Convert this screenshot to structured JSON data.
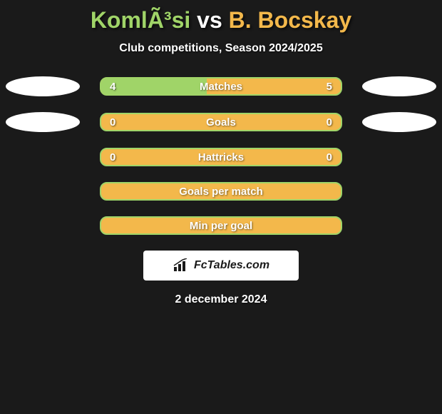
{
  "title": {
    "player1": "KomlÃ³si",
    "vs": "vs",
    "player2": "B. Bocskay"
  },
  "subtitle": "Club competitions, Season 2024/2025",
  "colors": {
    "player1_color": "#a0d468",
    "player2_color": "#f3b84b",
    "background": "#1a1a1a",
    "white": "#ffffff"
  },
  "stats": [
    {
      "label": "Matches",
      "left_value": "4",
      "right_value": "5",
      "fill_pct": 44,
      "show_ellipses": true
    },
    {
      "label": "Goals",
      "left_value": "0",
      "right_value": "0",
      "fill_pct": 0,
      "show_ellipses": true
    },
    {
      "label": "Hattricks",
      "left_value": "0",
      "right_value": "0",
      "fill_pct": 0,
      "show_ellipses": false
    },
    {
      "label": "Goals per match",
      "left_value": "",
      "right_value": "",
      "fill_pct": 0,
      "show_ellipses": false
    },
    {
      "label": "Min per goal",
      "left_value": "",
      "right_value": "",
      "fill_pct": 0,
      "show_ellipses": false
    }
  ],
  "logo_text": "FcTables.com",
  "date": "2 december 2024"
}
